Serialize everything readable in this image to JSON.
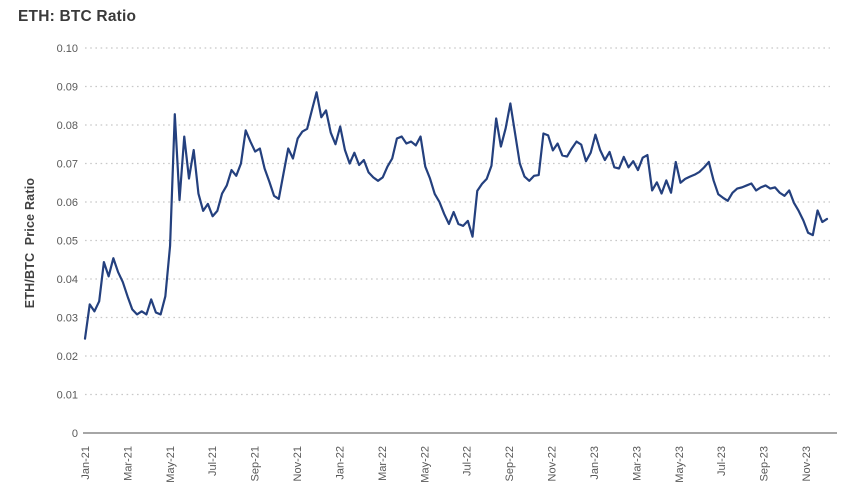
{
  "chart_data": {
    "type": "line",
    "title": "ETH: BTC Ratio",
    "ylabel": "ETH/BTC  Price Ratio",
    "xlabel": "",
    "ylim": [
      0,
      0.1
    ],
    "grid": "dotted horizontal gridlines at every 0.01",
    "legend": "none",
    "x_range": "Jan-2021 to mid-Dec-2023, weekly samples",
    "x_tick_labels": [
      "Jan-21",
      "Mar-21",
      "May-21",
      "Jul-21",
      "Sep-21",
      "Nov-21",
      "Jan-22",
      "Mar-22",
      "May-22",
      "Jul-22",
      "Sep-22",
      "Nov-22",
      "Jan-23",
      "Mar-23",
      "May-23",
      "Jul-23",
      "Sep-23",
      "Nov-23"
    ],
    "y_ticks": [
      {
        "label": "0",
        "value": 0
      },
      {
        "label": "0.01",
        "value": 0.01
      },
      {
        "label": "0.02",
        "value": 0.02
      },
      {
        "label": "0.03",
        "value": 0.03
      },
      {
        "label": "0.04",
        "value": 0.04
      },
      {
        "label": "0.05",
        "value": 0.05
      },
      {
        "label": "0.06",
        "value": 0.06
      },
      {
        "label": "0.07",
        "value": 0.07
      },
      {
        "label": "0.08",
        "value": 0.08
      },
      {
        "label": "0.09",
        "value": 0.09
      },
      {
        "label": "0.10",
        "value": 0.1
      }
    ],
    "series": [
      {
        "name": "ETH/BTC price ratio",
        "color": "#24407E",
        "values": [
          0.0245,
          0.0334,
          0.0316,
          0.0342,
          0.0444,
          0.0407,
          0.0454,
          0.0418,
          0.0392,
          0.0355,
          0.0321,
          0.0308,
          0.0316,
          0.0308,
          0.0347,
          0.0313,
          0.0308,
          0.0355,
          0.0486,
          0.0828,
          0.0605,
          0.077,
          0.0661,
          0.0735,
          0.0622,
          0.0577,
          0.0595,
          0.0563,
          0.0577,
          0.0622,
          0.0643,
          0.0683,
          0.0668,
          0.07,
          0.0786,
          0.0757,
          0.0731,
          0.0739,
          0.0687,
          0.0653,
          0.0616,
          0.0608,
          0.0674,
          0.0739,
          0.0713,
          0.0765,
          0.0783,
          0.079,
          0.0838,
          0.0885,
          0.082,
          0.0838,
          0.078,
          0.075,
          0.0796,
          0.0735,
          0.07,
          0.0728,
          0.0696,
          0.0709,
          0.0677,
          0.0664,
          0.0655,
          0.0664,
          0.0692,
          0.0713,
          0.0765,
          0.077,
          0.0752,
          0.0757,
          0.0747,
          0.077,
          0.0692,
          0.0661,
          0.0621,
          0.06,
          0.0569,
          0.0543,
          0.0574,
          0.0543,
          0.0538,
          0.0551,
          0.051,
          0.0629,
          0.0647,
          0.066,
          0.0694,
          0.0817,
          0.0744,
          0.0791,
          0.0856,
          0.0778,
          0.07,
          0.0666,
          0.0655,
          0.0668,
          0.067,
          0.0778,
          0.0773,
          0.0734,
          0.0752,
          0.0721,
          0.0718,
          0.0739,
          0.0757,
          0.0749,
          0.0706,
          0.0728,
          0.0775,
          0.0735,
          0.0709,
          0.073,
          0.069,
          0.0687,
          0.0717,
          0.069,
          0.0706,
          0.0683,
          0.0715,
          0.0722,
          0.063,
          0.0651,
          0.0622,
          0.0656,
          0.0624,
          0.0704,
          0.065,
          0.066,
          0.0666,
          0.0671,
          0.0678,
          0.069,
          0.0704,
          0.0656,
          0.062,
          0.0611,
          0.0603,
          0.0624,
          0.0635,
          0.0638,
          0.0643,
          0.0648,
          0.063,
          0.0638,
          0.0643,
          0.0635,
          0.0638,
          0.0624,
          0.0616,
          0.063,
          0.0598,
          0.0577,
          0.0552,
          0.052,
          0.0514,
          0.0578,
          0.0548,
          0.0556
        ]
      }
    ],
    "colors": {
      "line": "#24407E",
      "grid": "#c8c8c8",
      "axis": "#a6a6a6",
      "title_text": "#3a3a3a",
      "tick_text": "#595959"
    }
  }
}
